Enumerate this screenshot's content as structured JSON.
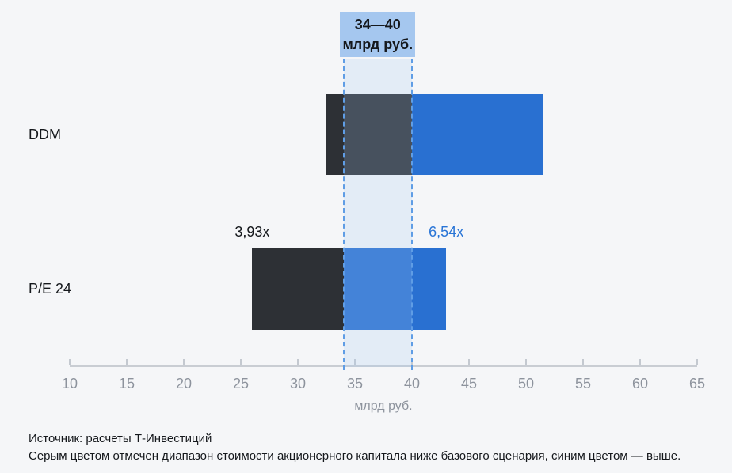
{
  "page": {
    "background": "#f5f6f8"
  },
  "chart_data": {
    "type": "bar",
    "orientation": "horizontal",
    "title": "",
    "x_axis": {
      "min": 10,
      "max": 65,
      "tick_step": 5,
      "ticks": [
        10,
        15,
        20,
        25,
        30,
        35,
        40,
        45,
        50,
        55,
        60,
        65
      ],
      "label": "млрд руб."
    },
    "band": {
      "from": 34,
      "to": 40,
      "label_lines": [
        "34—40",
        "млрд руб."
      ]
    },
    "rows": [
      {
        "label": "DDM",
        "low": 32.5,
        "base_split": 40,
        "high": 51.5,
        "low_annotation": "",
        "high_annotation": ""
      },
      {
        "label": "P/E 24",
        "low": 26,
        "base_split": 34,
        "high": 43,
        "low_annotation": "3,93x",
        "high_annotation": "6,54x"
      }
    ],
    "grid": false,
    "legend_position": "none",
    "colors": {
      "below_base": "#2d3035",
      "above_base": "#2970d1",
      "band_fill": "rgba(166,200,240,0.22)",
      "band_line": "#5f9de5",
      "band_label_bg": "#a5c7ef",
      "annotation_low": "#15181c",
      "annotation_high": "#2874d6",
      "axis_line": "#c9cdd3",
      "tick_text": "#8d939d"
    }
  },
  "footer": {
    "source": "Источник: расчеты Т-Инвестиций",
    "note": "Серым цветом отмечен диапазон стоимости акционерного капитала ниже базового сценария, синим цветом — выше."
  }
}
